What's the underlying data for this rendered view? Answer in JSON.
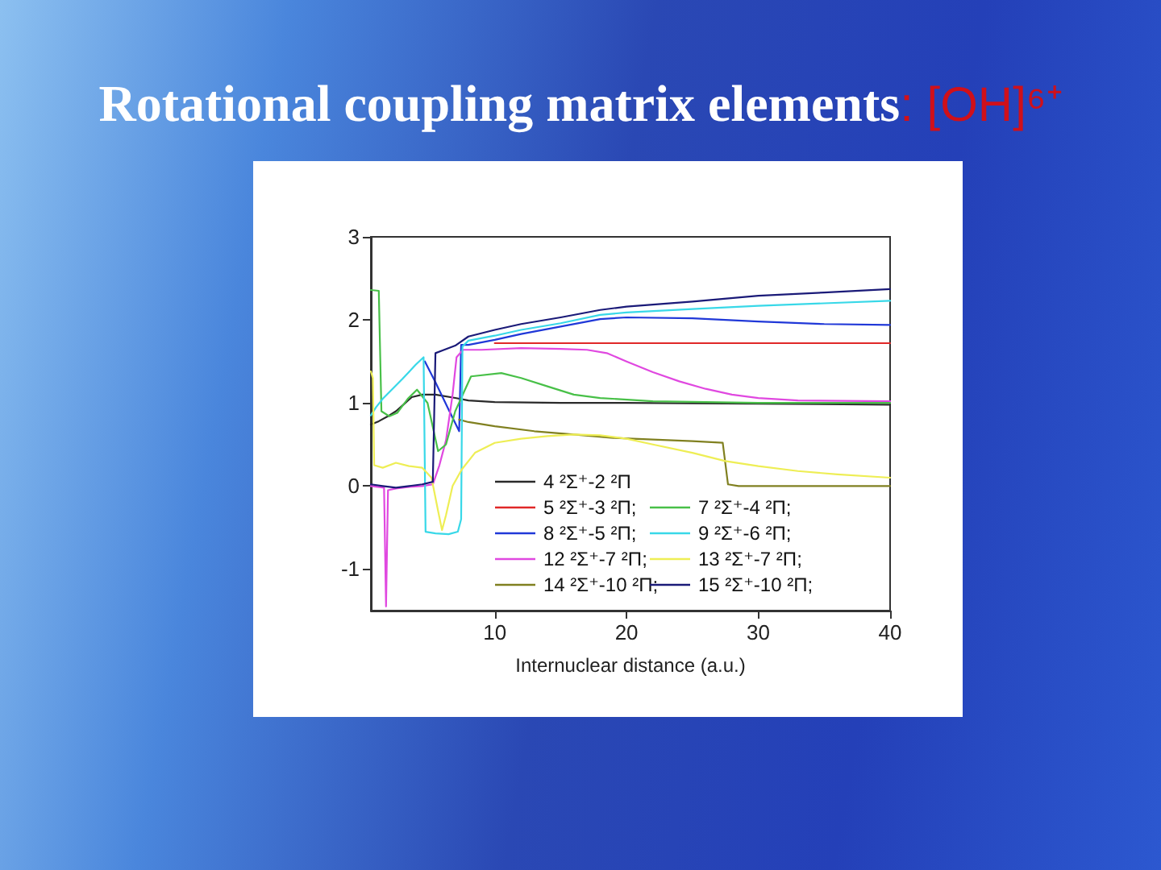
{
  "chart_data": {
    "type": "line",
    "title": "Rotational coupling matrix elements: [OH]⁶⁺",
    "xlabel": "Internuclear distance (a.u.)",
    "xlim": [
      0.6,
      40
    ],
    "xticks": [
      10,
      20,
      30,
      40
    ],
    "ylim": [
      -1.5,
      3
    ],
    "yticks": [
      -1,
      0,
      1,
      2,
      3
    ],
    "grid": false,
    "legend": "bottom right",
    "marker": "none",
    "line_style": "solid",
    "series": [
      {
        "name": "4 ²Σ⁺-2 ²Π",
        "color": "#2a2a2a",
        "x": [
          0.6,
          1.2,
          2,
          2.5,
          3,
          3.7,
          4.5,
          5.5,
          7,
          8,
          10,
          15,
          20,
          30,
          40
        ],
        "values": [
          0.74,
          0.78,
          0.85,
          0.9,
          0.97,
          1.07,
          1.1,
          1.1,
          1.06,
          1.03,
          1.01,
          1.0,
          1.0,
          0.99,
          0.98
        ]
      },
      {
        "name": "5 ²Σ⁺-3 ²Π;",
        "color": "#e02828",
        "x": [
          10,
          15,
          20,
          25,
          30,
          35,
          40
        ],
        "values": [
          1.72,
          1.72,
          1.72,
          1.72,
          1.72,
          1.72,
          1.72
        ]
      },
      {
        "name": "8 ²Σ⁺-5 ²Π;",
        "color": "#2038d8",
        "x": [
          4.7,
          5.5,
          6.5,
          7.3,
          7.45,
          8,
          10,
          12,
          15,
          18,
          20,
          25,
          30,
          35,
          40
        ],
        "values": [
          1.5,
          1.25,
          0.92,
          0.66,
          1.7,
          1.7,
          1.76,
          1.83,
          1.92,
          2.01,
          2.03,
          2.02,
          1.98,
          1.95,
          1.94
        ]
      },
      {
        "name": "12 ²Σ⁺-7 ²Π;",
        "color": "#e048e0",
        "x": [
          0.6,
          1.6,
          1.75,
          1.9,
          2.5,
          3.5,
          4.5,
          5.3,
          5.8,
          6.3,
          6.8,
          7.1,
          7.6,
          9,
          12,
          15,
          17,
          18.5,
          20,
          22,
          24,
          26,
          28,
          30,
          33,
          40
        ],
        "values": [
          0.0,
          -0.02,
          -1.45,
          -0.05,
          -0.03,
          -0.01,
          0.0,
          0.02,
          0.25,
          0.55,
          1.1,
          1.55,
          1.64,
          1.64,
          1.66,
          1.65,
          1.64,
          1.6,
          1.5,
          1.37,
          1.26,
          1.17,
          1.1,
          1.06,
          1.03,
          1.02
        ]
      },
      {
        "name": "14 ²Σ⁺-10 ²Π;",
        "color": "#808020",
        "x": [
          7.3,
          8,
          10,
          13,
          16,
          19,
          22,
          25,
          27.3,
          27.7,
          28.5,
          40
        ],
        "values": [
          0.8,
          0.77,
          0.72,
          0.66,
          0.62,
          0.58,
          0.56,
          0.54,
          0.52,
          0.02,
          0.0,
          0.0
        ]
      },
      {
        "name": "7 ²Σ⁺-4 ²Π;",
        "color": "#48c048",
        "x": [
          0.6,
          1.2,
          1.4,
          2,
          2.6,
          3.4,
          4.1,
          4.9,
          5.7,
          6.3,
          7,
          8.2,
          10.5,
          12,
          14,
          16,
          18,
          22,
          30,
          40
        ],
        "values": [
          2.36,
          2.35,
          0.9,
          0.84,
          0.88,
          1.05,
          1.16,
          1.0,
          0.42,
          0.5,
          0.9,
          1.32,
          1.36,
          1.3,
          1.2,
          1.1,
          1.06,
          1.02,
          1.0,
          1.0
        ]
      },
      {
        "name": "9 ²Σ⁺-6 ²Π;",
        "color": "#38d8e8",
        "x": [
          0.6,
          1,
          1.5,
          2,
          2.5,
          3,
          4,
          4.6,
          4.75,
          5.5,
          6.5,
          7.2,
          7.45,
          7.55,
          8,
          10,
          12,
          15,
          18,
          20,
          25,
          30,
          35,
          40
        ],
        "values": [
          0.85,
          0.95,
          1.05,
          1.13,
          1.21,
          1.29,
          1.46,
          1.55,
          -0.55,
          -0.57,
          -0.58,
          -0.55,
          -0.4,
          1.68,
          1.75,
          1.81,
          1.88,
          1.96,
          2.06,
          2.09,
          2.13,
          2.17,
          2.2,
          2.23
        ]
      },
      {
        "name": "13 ²Σ⁺-7 ²Π;",
        "color": "#eeee55",
        "x": [
          0.6,
          0.75,
          0.85,
          1.5,
          2.5,
          3.5,
          4.5,
          5.2,
          5.7,
          6,
          6.3,
          6.8,
          7.5,
          8.5,
          10,
          12,
          14,
          16,
          18,
          20,
          22,
          25,
          27.5,
          30,
          33,
          36,
          40
        ],
        "values": [
          1.38,
          1.3,
          0.25,
          0.22,
          0.28,
          0.24,
          0.22,
          0.1,
          -0.3,
          -0.53,
          -0.35,
          0.0,
          0.2,
          0.4,
          0.52,
          0.57,
          0.6,
          0.62,
          0.61,
          0.57,
          0.5,
          0.4,
          0.3,
          0.24,
          0.18,
          0.14,
          0.1
        ]
      },
      {
        "name": "15 ²Σ⁺-10 ²Π;",
        "color": "#1a1a78",
        "x": [
          0.6,
          1.5,
          2.5,
          3.5,
          4.5,
          5.3,
          5.5,
          6,
          7,
          8,
          10,
          12,
          15,
          18,
          20,
          25,
          30,
          35,
          40
        ],
        "values": [
          0.02,
          0.0,
          -0.02,
          0.0,
          0.02,
          0.05,
          1.6,
          1.63,
          1.69,
          1.8,
          1.88,
          1.95,
          2.03,
          2.12,
          2.16,
          2.22,
          2.29,
          2.33,
          2.37
        ]
      }
    ]
  }
}
